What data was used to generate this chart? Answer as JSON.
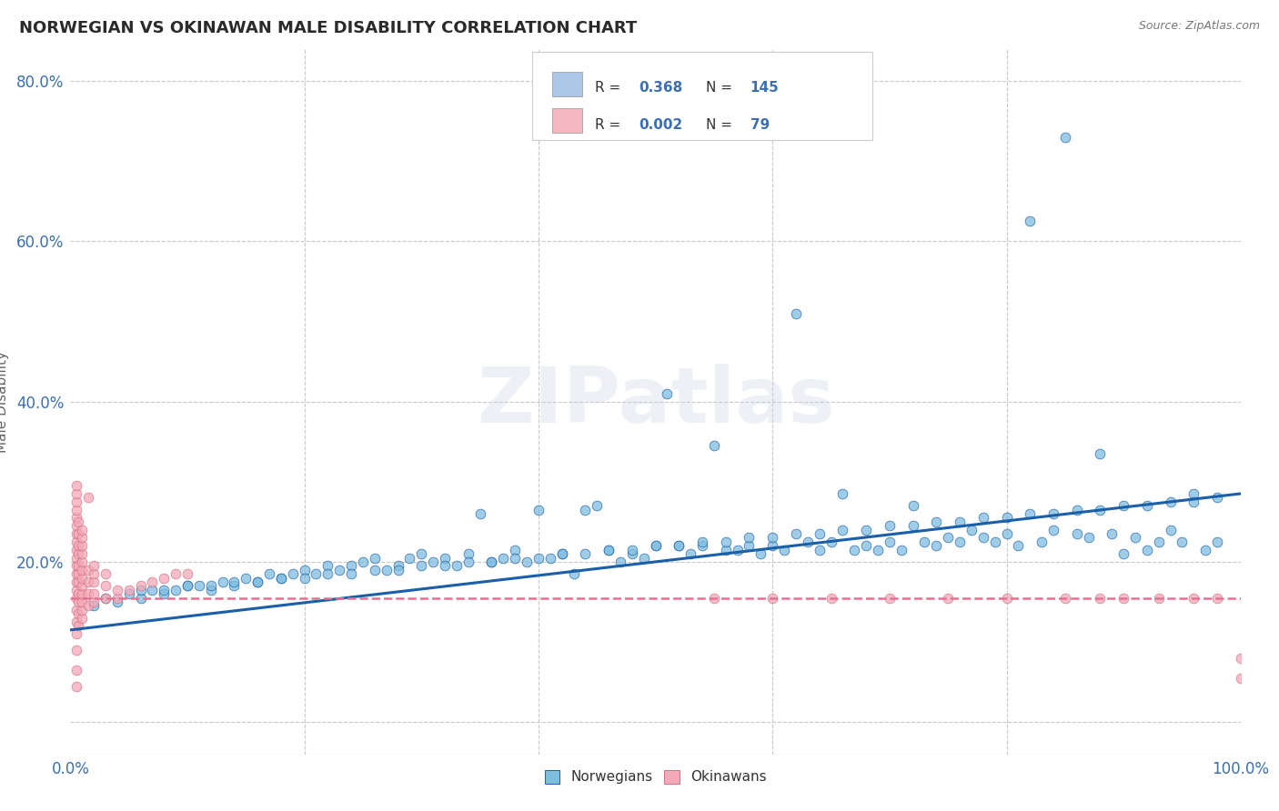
{
  "title": "NORWEGIAN VS OKINAWAN MALE DISABILITY CORRELATION CHART",
  "source": "Source: ZipAtlas.com",
  "ylabel": "Male Disability",
  "watermark": "ZIPatlas",
  "legend_box": {
    "norwegian": {
      "R": "0.368",
      "N": "145",
      "color": "#aec6e8"
    },
    "okinawan": {
      "R": "0.002",
      "N": "79",
      "color": "#f4b8c1"
    }
  },
  "norwegian_scatter_color": "#7fbde0",
  "okinawan_scatter_color": "#f4a8b8",
  "norwegian_line_color": "#1a5fa8",
  "okinawan_line_color": "#e87090",
  "background_color": "#ffffff",
  "grid_color": "#c8c8c8",
  "xlim": [
    0.0,
    1.0
  ],
  "ylim": [
    -0.04,
    0.84
  ],
  "xticks": [
    0.0,
    0.2,
    0.4,
    0.6,
    0.8,
    1.0
  ],
  "yticks": [
    0.0,
    0.2,
    0.4,
    0.6,
    0.8
  ],
  "xticklabels": [
    "0.0%",
    "",
    "",
    "",
    "",
    "100.0%"
  ],
  "yticklabels": [
    "",
    "20.0%",
    "40.0%",
    "60.0%",
    "80.0%"
  ],
  "norwegian_line_x0": 0.0,
  "norwegian_line_y0": 0.115,
  "norwegian_line_x1": 1.0,
  "norwegian_line_y1": 0.285,
  "okinawan_line_x0": 0.0,
  "okinawan_line_y0": 0.155,
  "okinawan_line_x1": 1.0,
  "okinawan_line_y1": 0.155,
  "nor_x": [
    0.02,
    0.03,
    0.04,
    0.05,
    0.06,
    0.07,
    0.08,
    0.09,
    0.1,
    0.11,
    0.12,
    0.13,
    0.14,
    0.15,
    0.16,
    0.17,
    0.18,
    0.19,
    0.2,
    0.21,
    0.22,
    0.23,
    0.24,
    0.25,
    0.26,
    0.27,
    0.28,
    0.29,
    0.3,
    0.31,
    0.32,
    0.33,
    0.34,
    0.35,
    0.36,
    0.37,
    0.38,
    0.39,
    0.4,
    0.41,
    0.42,
    0.43,
    0.44,
    0.45,
    0.46,
    0.47,
    0.48,
    0.49,
    0.5,
    0.51,
    0.52,
    0.53,
    0.54,
    0.55,
    0.56,
    0.57,
    0.58,
    0.59,
    0.6,
    0.61,
    0.62,
    0.63,
    0.64,
    0.65,
    0.66,
    0.67,
    0.68,
    0.69,
    0.7,
    0.71,
    0.72,
    0.73,
    0.74,
    0.75,
    0.76,
    0.77,
    0.78,
    0.79,
    0.8,
    0.81,
    0.82,
    0.83,
    0.84,
    0.85,
    0.86,
    0.87,
    0.88,
    0.89,
    0.9,
    0.91,
    0.92,
    0.93,
    0.94,
    0.95,
    0.96,
    0.97,
    0.98,
    0.06,
    0.08,
    0.1,
    0.12,
    0.14,
    0.16,
    0.18,
    0.2,
    0.22,
    0.24,
    0.26,
    0.28,
    0.3,
    0.32,
    0.34,
    0.36,
    0.38,
    0.4,
    0.42,
    0.44,
    0.46,
    0.48,
    0.5,
    0.52,
    0.54,
    0.56,
    0.58,
    0.6,
    0.62,
    0.64,
    0.66,
    0.68,
    0.7,
    0.72,
    0.74,
    0.76,
    0.78,
    0.8,
    0.82,
    0.84,
    0.86,
    0.88,
    0.9,
    0.92,
    0.94,
    0.96,
    0.98
  ],
  "nor_y": [
    0.145,
    0.155,
    0.15,
    0.16,
    0.155,
    0.165,
    0.16,
    0.165,
    0.17,
    0.17,
    0.165,
    0.175,
    0.17,
    0.18,
    0.175,
    0.185,
    0.18,
    0.185,
    0.19,
    0.185,
    0.195,
    0.19,
    0.195,
    0.2,
    0.205,
    0.19,
    0.195,
    0.205,
    0.21,
    0.2,
    0.205,
    0.195,
    0.21,
    0.26,
    0.2,
    0.205,
    0.215,
    0.2,
    0.265,
    0.205,
    0.21,
    0.185,
    0.265,
    0.27,
    0.215,
    0.2,
    0.21,
    0.205,
    0.22,
    0.41,
    0.22,
    0.21,
    0.22,
    0.345,
    0.215,
    0.215,
    0.22,
    0.21,
    0.22,
    0.215,
    0.51,
    0.225,
    0.215,
    0.225,
    0.285,
    0.215,
    0.22,
    0.215,
    0.225,
    0.215,
    0.27,
    0.225,
    0.22,
    0.23,
    0.225,
    0.24,
    0.23,
    0.225,
    0.235,
    0.22,
    0.625,
    0.225,
    0.24,
    0.73,
    0.235,
    0.23,
    0.335,
    0.235,
    0.21,
    0.23,
    0.215,
    0.225,
    0.24,
    0.225,
    0.285,
    0.215,
    0.225,
    0.165,
    0.165,
    0.17,
    0.17,
    0.175,
    0.175,
    0.18,
    0.18,
    0.185,
    0.185,
    0.19,
    0.19,
    0.195,
    0.195,
    0.2,
    0.2,
    0.205,
    0.205,
    0.21,
    0.21,
    0.215,
    0.215,
    0.22,
    0.22,
    0.225,
    0.225,
    0.23,
    0.23,
    0.235,
    0.235,
    0.24,
    0.24,
    0.245,
    0.245,
    0.25,
    0.25,
    0.255,
    0.255,
    0.26,
    0.26,
    0.265,
    0.265,
    0.27,
    0.27,
    0.275,
    0.275,
    0.28
  ],
  "oki_x": [
    0.005,
    0.005,
    0.005,
    0.005,
    0.005,
    0.005,
    0.005,
    0.005,
    0.005,
    0.005,
    0.005,
    0.005,
    0.005,
    0.005,
    0.005,
    0.005,
    0.005,
    0.005,
    0.005,
    0.005,
    0.005,
    0.007,
    0.007,
    0.007,
    0.007,
    0.007,
    0.007,
    0.007,
    0.007,
    0.007,
    0.007,
    0.007,
    0.01,
    0.01,
    0.01,
    0.01,
    0.01,
    0.01,
    0.01,
    0.01,
    0.01,
    0.01,
    0.01,
    0.01,
    0.015,
    0.015,
    0.015,
    0.015,
    0.015,
    0.02,
    0.02,
    0.02,
    0.02,
    0.02,
    0.03,
    0.03,
    0.03,
    0.04,
    0.04,
    0.05,
    0.06,
    0.07,
    0.08,
    0.09,
    0.1,
    0.55,
    0.6,
    0.65,
    0.7,
    0.75,
    0.8,
    0.85,
    0.88,
    0.9,
    0.93,
    0.96,
    0.98,
    1.0,
    1.0
  ],
  "oki_y": [
    0.045,
    0.065,
    0.09,
    0.11,
    0.125,
    0.14,
    0.155,
    0.165,
    0.175,
    0.185,
    0.195,
    0.205,
    0.215,
    0.225,
    0.235,
    0.245,
    0.255,
    0.265,
    0.275,
    0.285,
    0.295,
    0.12,
    0.135,
    0.15,
    0.16,
    0.175,
    0.185,
    0.195,
    0.21,
    0.22,
    0.235,
    0.25,
    0.13,
    0.14,
    0.15,
    0.16,
    0.17,
    0.18,
    0.19,
    0.2,
    0.21,
    0.22,
    0.23,
    0.24,
    0.145,
    0.16,
    0.175,
    0.19,
    0.28,
    0.15,
    0.16,
    0.175,
    0.185,
    0.195,
    0.155,
    0.17,
    0.185,
    0.155,
    0.165,
    0.165,
    0.17,
    0.175,
    0.18,
    0.185,
    0.185,
    0.155,
    0.155,
    0.155,
    0.155,
    0.155,
    0.155,
    0.155,
    0.155,
    0.155,
    0.155,
    0.155,
    0.155,
    0.055,
    0.08
  ]
}
